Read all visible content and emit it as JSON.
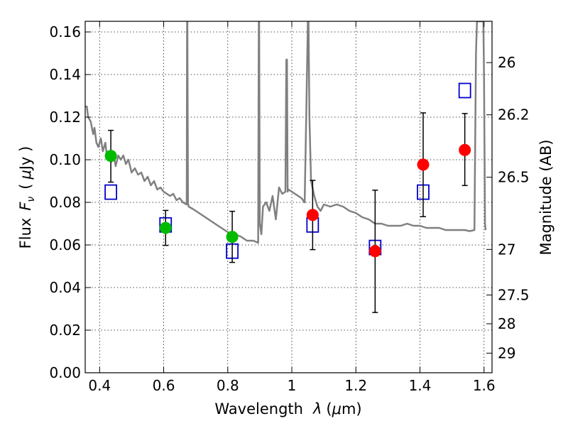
{
  "chart_data": {
    "type": "scatter",
    "xlabel": "Wavelength",
    "xlabel_symbol": "λ",
    "xlabel_unit_open": "(",
    "xlabel_unit_mu": "μ",
    "xlabel_unit_rest": "m)",
    "ylabel_left": "Flux",
    "ylabel_left_symbol": "F",
    "ylabel_left_subscript": "ν",
    "ylabel_left_unit_open": "(",
    "ylabel_left_unit_mu": "μ",
    "ylabel_left_unit_rest": "Jy )",
    "ylabel_right": "Magnitude (AB)",
    "xlim": [
      0.355,
      1.625
    ],
    "ylim": [
      0.0,
      0.165
    ],
    "x_ticks": [
      0.4,
      0.6,
      0.8,
      1.0,
      1.2,
      1.4,
      1.6
    ],
    "x_tick_labels": [
      "0.4",
      "0.6",
      "0.8",
      "1",
      "1.2",
      "1.4",
      "1.6"
    ],
    "y_ticks": [
      0.0,
      0.02,
      0.04,
      0.06,
      0.08,
      0.1,
      0.12,
      0.14,
      0.16
    ],
    "y_tick_labels": [
      "0.00",
      "0.02",
      "0.04",
      "0.06",
      "0.08",
      "0.10",
      "0.12",
      "0.14",
      "0.16"
    ],
    "right_axis_ticks": [
      {
        "flux": 0.1456,
        "label": "26"
      },
      {
        "flux": 0.1211,
        "label": "26.2"
      },
      {
        "flux": 0.0918,
        "label": "26.5"
      },
      {
        "flux": 0.0579,
        "label": "27"
      },
      {
        "flux": 0.0365,
        "label": "27.5"
      },
      {
        "flux": 0.023,
        "label": "28"
      },
      {
        "flux": 0.0092,
        "label": "29"
      }
    ],
    "series": [
      {
        "name": "observed-optical",
        "marker": "circle",
        "color": "#00bb00",
        "points": [
          {
            "x": 0.435,
            "y": 0.1018,
            "ylo": 0.0895,
            "yhi": 0.1138
          },
          {
            "x": 0.606,
            "y": 0.068,
            "ylo": 0.0598,
            "yhi": 0.0762
          },
          {
            "x": 0.814,
            "y": 0.0638,
            "ylo": 0.0518,
            "yhi": 0.0758
          }
        ]
      },
      {
        "name": "observed-nir",
        "marker": "circle",
        "color": "#ff0000",
        "points": [
          {
            "x": 1.065,
            "y": 0.0741,
            "ylo": 0.0578,
            "yhi": 0.0903
          },
          {
            "x": 1.26,
            "y": 0.0571,
            "ylo": 0.0283,
            "yhi": 0.0857
          },
          {
            "x": 1.41,
            "y": 0.0977,
            "ylo": 0.0733,
            "yhi": 0.122
          },
          {
            "x": 1.54,
            "y": 0.1046,
            "ylo": 0.0879,
            "yhi": 0.1217
          }
        ]
      },
      {
        "name": "model-bandpass",
        "marker": "square",
        "color": "#0000cc",
        "points": [
          {
            "x": 0.435,
            "y": 0.0848
          },
          {
            "x": 0.606,
            "y": 0.0694
          },
          {
            "x": 0.814,
            "y": 0.0571
          },
          {
            "x": 1.065,
            "y": 0.0694
          },
          {
            "x": 1.26,
            "y": 0.0588
          },
          {
            "x": 1.41,
            "y": 0.0848
          },
          {
            "x": 1.54,
            "y": 0.1325
          }
        ]
      },
      {
        "name": "template-spectrum",
        "marker": "line",
        "color": "#808080",
        "x": [
          0.355,
          0.36,
          0.364,
          0.372,
          0.38,
          0.384,
          0.39,
          0.396,
          0.404,
          0.41,
          0.418,
          0.424,
          0.43,
          0.436,
          0.442,
          0.45,
          0.458,
          0.466,
          0.474,
          0.482,
          0.49,
          0.5,
          0.51,
          0.52,
          0.53,
          0.54,
          0.55,
          0.56,
          0.57,
          0.58,
          0.59,
          0.6,
          0.61,
          0.62,
          0.63,
          0.64,
          0.65,
          0.66,
          0.672,
          0.673,
          0.674,
          0.676,
          0.677,
          0.678,
          0.69,
          0.7,
          0.72,
          0.74,
          0.76,
          0.78,
          0.8,
          0.82,
          0.84,
          0.86,
          0.88,
          0.895,
          0.897,
          0.898,
          0.9,
          0.905,
          0.91,
          0.92,
          0.93,
          0.94,
          0.95,
          0.96,
          0.97,
          0.98,
          0.983,
          0.985,
          0.987,
          0.99,
          1.0,
          1.01,
          1.02,
          1.03,
          1.04,
          1.045,
          1.05,
          1.052,
          1.055,
          1.06,
          1.07,
          1.08,
          1.09,
          1.1,
          1.12,
          1.14,
          1.16,
          1.18,
          1.2,
          1.22,
          1.24,
          1.26,
          1.28,
          1.3,
          1.32,
          1.34,
          1.36,
          1.38,
          1.4,
          1.42,
          1.44,
          1.46,
          1.48,
          1.5,
          1.52,
          1.54,
          1.555,
          1.57,
          1.575,
          1.578,
          1.585,
          1.592,
          1.598,
          1.6,
          1.603,
          1.605
        ],
        "y": [
          0.125,
          0.125,
          0.12,
          0.118,
          0.112,
          0.115,
          0.108,
          0.106,
          0.11,
          0.104,
          0.108,
          0.1,
          0.104,
          0.099,
          0.104,
          0.097,
          0.102,
          0.1,
          0.102,
          0.098,
          0.1,
          0.094,
          0.096,
          0.093,
          0.094,
          0.09,
          0.092,
          0.088,
          0.09,
          0.086,
          0.087,
          0.085,
          0.084,
          0.083,
          0.084,
          0.081,
          0.082,
          0.08,
          0.079,
          0.165,
          0.165,
          0.079,
          0.079,
          0.078,
          0.077,
          0.076,
          0.074,
          0.072,
          0.07,
          0.068,
          0.066,
          0.065,
          0.064,
          0.062,
          0.062,
          0.061,
          0.165,
          0.165,
          0.07,
          0.065,
          0.078,
          0.08,
          0.076,
          0.083,
          0.072,
          0.087,
          0.084,
          0.085,
          0.147,
          0.147,
          0.085,
          0.086,
          0.085,
          0.084,
          0.083,
          0.082,
          0.08,
          0.12,
          0.165,
          0.165,
          0.12,
          0.09,
          0.083,
          0.078,
          0.076,
          0.079,
          0.078,
          0.079,
          0.078,
          0.076,
          0.075,
          0.073,
          0.072,
          0.07,
          0.07,
          0.069,
          0.069,
          0.069,
          0.07,
          0.069,
          0.069,
          0.068,
          0.068,
          0.068,
          0.067,
          0.067,
          0.067,
          0.067,
          0.0665,
          0.067,
          0.15,
          0.165,
          0.165,
          0.165,
          0.165,
          0.14,
          0.07,
          0.067
        ]
      }
    ]
  }
}
